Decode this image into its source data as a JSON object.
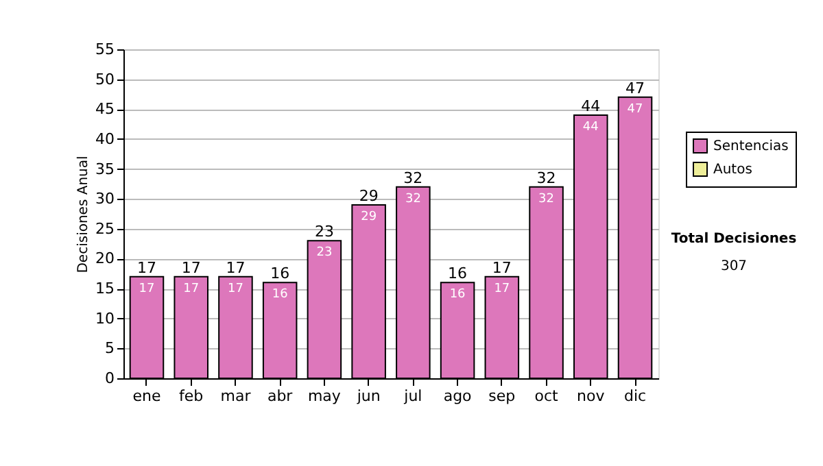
{
  "chart_data": {
    "type": "bar",
    "ylabel": "Decisiones Anual",
    "categories": [
      "ene",
      "feb",
      "mar",
      "abr",
      "may",
      "jun",
      "jul",
      "ago",
      "sep",
      "oct",
      "nov",
      "dic"
    ],
    "series": [
      {
        "name": "Sentencias",
        "color": "#dd77bb",
        "values": [
          17,
          17,
          17,
          16,
          23,
          29,
          32,
          16,
          17,
          32,
          44,
          47
        ],
        "value_labels": [
          "17",
          "17",
          "17",
          "16",
          "23",
          "29",
          "32",
          "16",
          "17",
          "32",
          "44",
          "47"
        ]
      },
      {
        "name": "Autos",
        "color": "#eeee99",
        "values": [
          0,
          0,
          0,
          0,
          0,
          0,
          0,
          0,
          0,
          0,
          0,
          0
        ]
      }
    ],
    "stacked": true,
    "totals": [
      "17",
      "17",
      "17",
      "16",
      "23",
      "29",
      "32",
      "16",
      "17",
      "32",
      "44",
      "47"
    ],
    "ylim": [
      0,
      55
    ],
    "yticks": [
      0,
      5,
      10,
      15,
      20,
      25,
      30,
      35,
      40,
      45,
      50,
      55
    ],
    "grid": "y",
    "legend": "right",
    "annotations": [
      "Total Decisiones",
      "307"
    ]
  }
}
